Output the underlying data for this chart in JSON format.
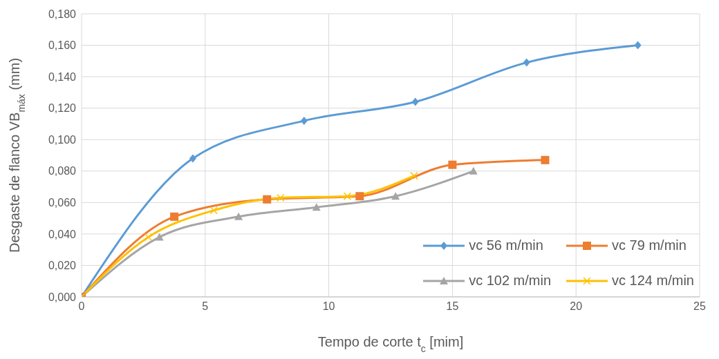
{
  "chart_data": {
    "type": "line",
    "xlabel": "Tempo de corte t$_{c}$ [mim]",
    "ylabel": "Desgaste de flanco VB$_{máx}$ (mm)",
    "series": [
      {
        "name": "vc 56 m/min",
        "color": "#5b9bd5",
        "marker": "diamond",
        "x": [
          0,
          4.5,
          9,
          13.5,
          18,
          22.5
        ],
        "values": [
          0,
          0.088,
          0.112,
          0.124,
          0.149,
          0.16
        ]
      },
      {
        "name": "vc 79 m/min",
        "color": "#ed7d31",
        "marker": "square",
        "x": [
          0,
          3.75,
          7.5,
          11.25,
          15,
          18.75
        ],
        "values": [
          0,
          0.051,
          0.062,
          0.064,
          0.084,
          0.087
        ]
      },
      {
        "name": "vc 102 m/min",
        "color": "#a5a5a5",
        "marker": "triangle",
        "x": [
          0,
          3.15,
          6.35,
          9.5,
          12.7,
          15.85
        ],
        "values": [
          0,
          0.038,
          0.051,
          0.057,
          0.064,
          0.08
        ]
      },
      {
        "name": "vc 124 m/min",
        "color": "#ffc000",
        "marker": "cross",
        "x": [
          0,
          2.7,
          5.35,
          8.05,
          10.75,
          13.45
        ],
        "values": [
          0,
          0.038,
          0.055,
          0.063,
          0.064,
          0.077
        ]
      }
    ],
    "xlim": [
      0,
      25
    ],
    "xticks": [
      0,
      5,
      10,
      15,
      20,
      25
    ],
    "ylim": [
      0,
      0.18
    ],
    "yticks": [
      {
        "value": 0,
        "label": "0,000"
      },
      {
        "value": 0.02,
        "label": "0,020"
      },
      {
        "value": 0.04,
        "label": "0,040"
      },
      {
        "value": 0.06,
        "label": "0,060"
      },
      {
        "value": 0.08,
        "label": "0,080"
      },
      {
        "value": 0.1,
        "label": "0,100"
      },
      {
        "value": 0.12,
        "label": "0,120"
      },
      {
        "value": 0.14,
        "label": "0,140"
      },
      {
        "value": 0.16,
        "label": "0,160"
      },
      {
        "value": 0.18,
        "label": "0,180"
      }
    ],
    "grid": true,
    "legend": "bottom right",
    "line_style": "solid"
  }
}
